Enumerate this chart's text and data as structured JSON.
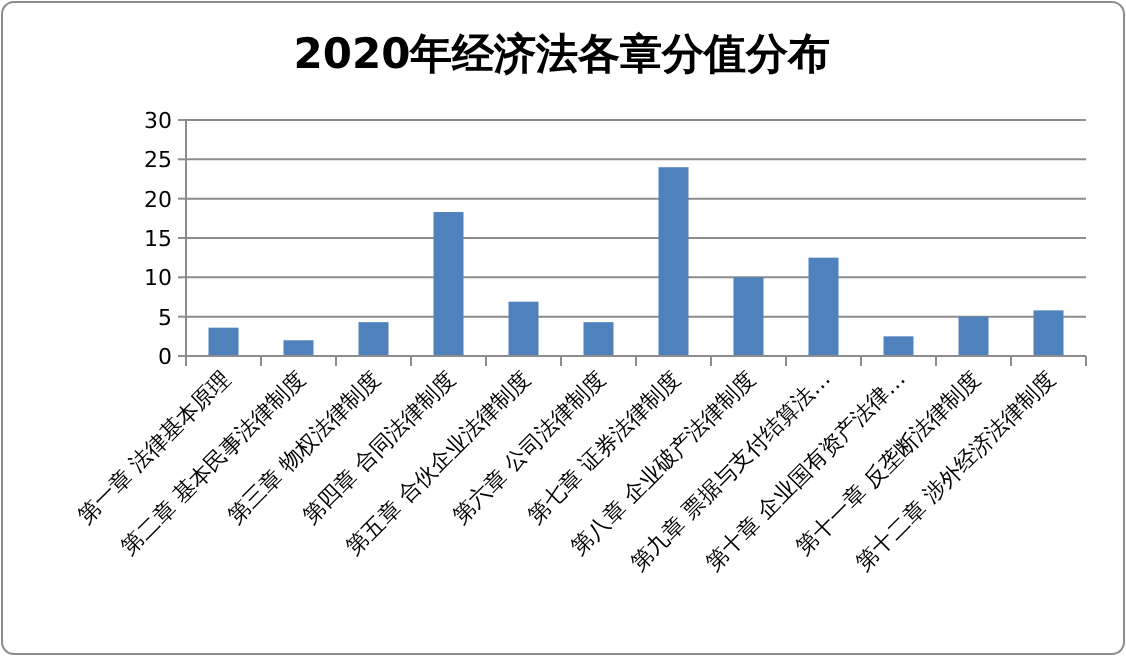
{
  "chart_data": {
    "type": "bar",
    "title": "2020年经济法各章分值分布",
    "categories": [
      "第一章 法律基本原理",
      "第二章 基本民事法律制度",
      "第三章 物权法律制度",
      "第四章 合同法律制度",
      "第五章 合伙企业法律制度",
      "第六章 公司法律制度",
      "第七章 证券法律制度",
      "第八章 企业破产法律制度",
      "第九章 票据与支付结算法…",
      "第十章 企业国有资产法律…",
      "第十一章 反垄断法律制度",
      "第十二章 涉外经济法律制度"
    ],
    "values": [
      3.6,
      2.0,
      4.3,
      18.3,
      6.9,
      4.3,
      24,
      10,
      12.5,
      2.5,
      5.0,
      5.8
    ],
    "color": "#4f81bd",
    "ylim": [
      0,
      30
    ],
    "yticks": [
      0,
      5,
      10,
      15,
      20,
      25,
      30
    ],
    "grid": "y"
  }
}
